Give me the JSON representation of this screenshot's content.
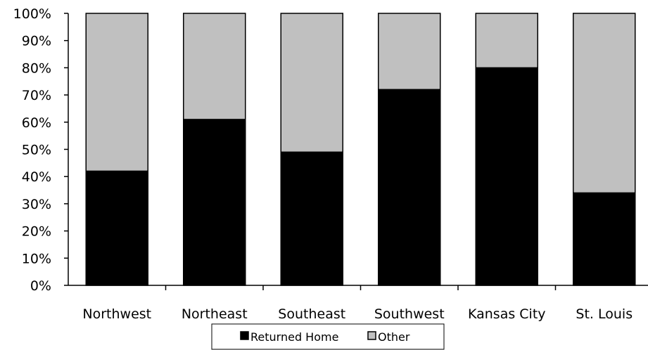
{
  "chart_data": {
    "type": "bar",
    "stacked": true,
    "percent": true,
    "categories": [
      "Northwest",
      "Northeast",
      "Southeast",
      "Southwest",
      "Kansas City",
      "St. Louis"
    ],
    "series": [
      {
        "name": "Returned Home",
        "values": [
          42,
          61,
          49,
          72,
          80,
          34
        ],
        "color": "#000000"
      },
      {
        "name": "Other",
        "values": [
          58,
          39,
          51,
          28,
          20,
          66
        ],
        "color": "#c0c0c0"
      }
    ],
    "ylim": [
      0,
      100
    ],
    "ytick_values": [
      0,
      10,
      20,
      30,
      40,
      50,
      60,
      70,
      80,
      90,
      100
    ],
    "ytick_labels": [
      "0%",
      "10%",
      "20%",
      "30%",
      "40%",
      "50%",
      "60%",
      "70%",
      "80%",
      "90%",
      "100%"
    ],
    "title": "",
    "xlabel": "",
    "ylabel": "",
    "grid": false,
    "legend_position": "bottom"
  }
}
